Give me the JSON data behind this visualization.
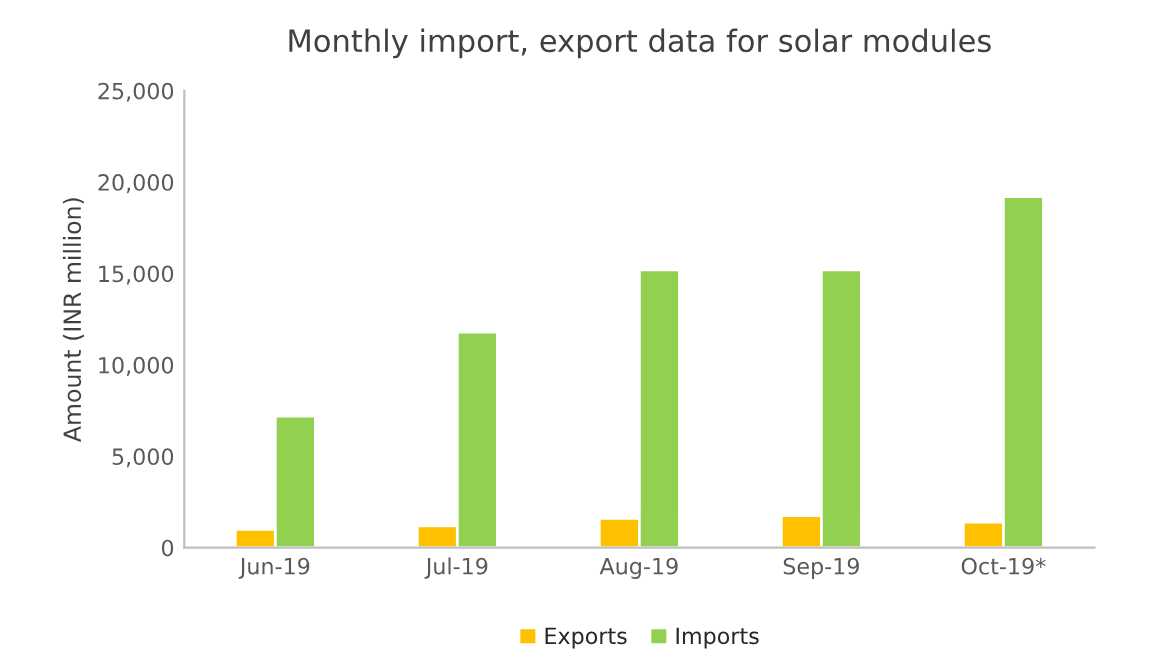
{
  "chart_data": {
    "type": "bar",
    "title": "Monthly import, export data for solar modules",
    "ylabel": "Amount (INR million)",
    "categories": [
      "Jun-19",
      "Jul-19",
      "Aug-19",
      "Sep-19",
      "Oct-19*"
    ],
    "series": [
      {
        "name": "Exports",
        "color": "#ffc000",
        "values": [
          1000,
          1200,
          1600,
          1750,
          1400
        ]
      },
      {
        "name": "Imports",
        "color": "#92d050",
        "values": [
          7200,
          11800,
          15200,
          15200,
          19200
        ]
      }
    ],
    "ylim": [
      0,
      25000
    ],
    "yticks": [
      {
        "value": 0,
        "label": "0"
      },
      {
        "value": 5000,
        "label": "5,000"
      },
      {
        "value": 10000,
        "label": "10,000"
      },
      {
        "value": 15000,
        "label": "15,000"
      },
      {
        "value": 20000,
        "label": "20,000"
      },
      {
        "value": 25000,
        "label": "25,000"
      }
    ],
    "grid": false,
    "legend": "bottom"
  }
}
